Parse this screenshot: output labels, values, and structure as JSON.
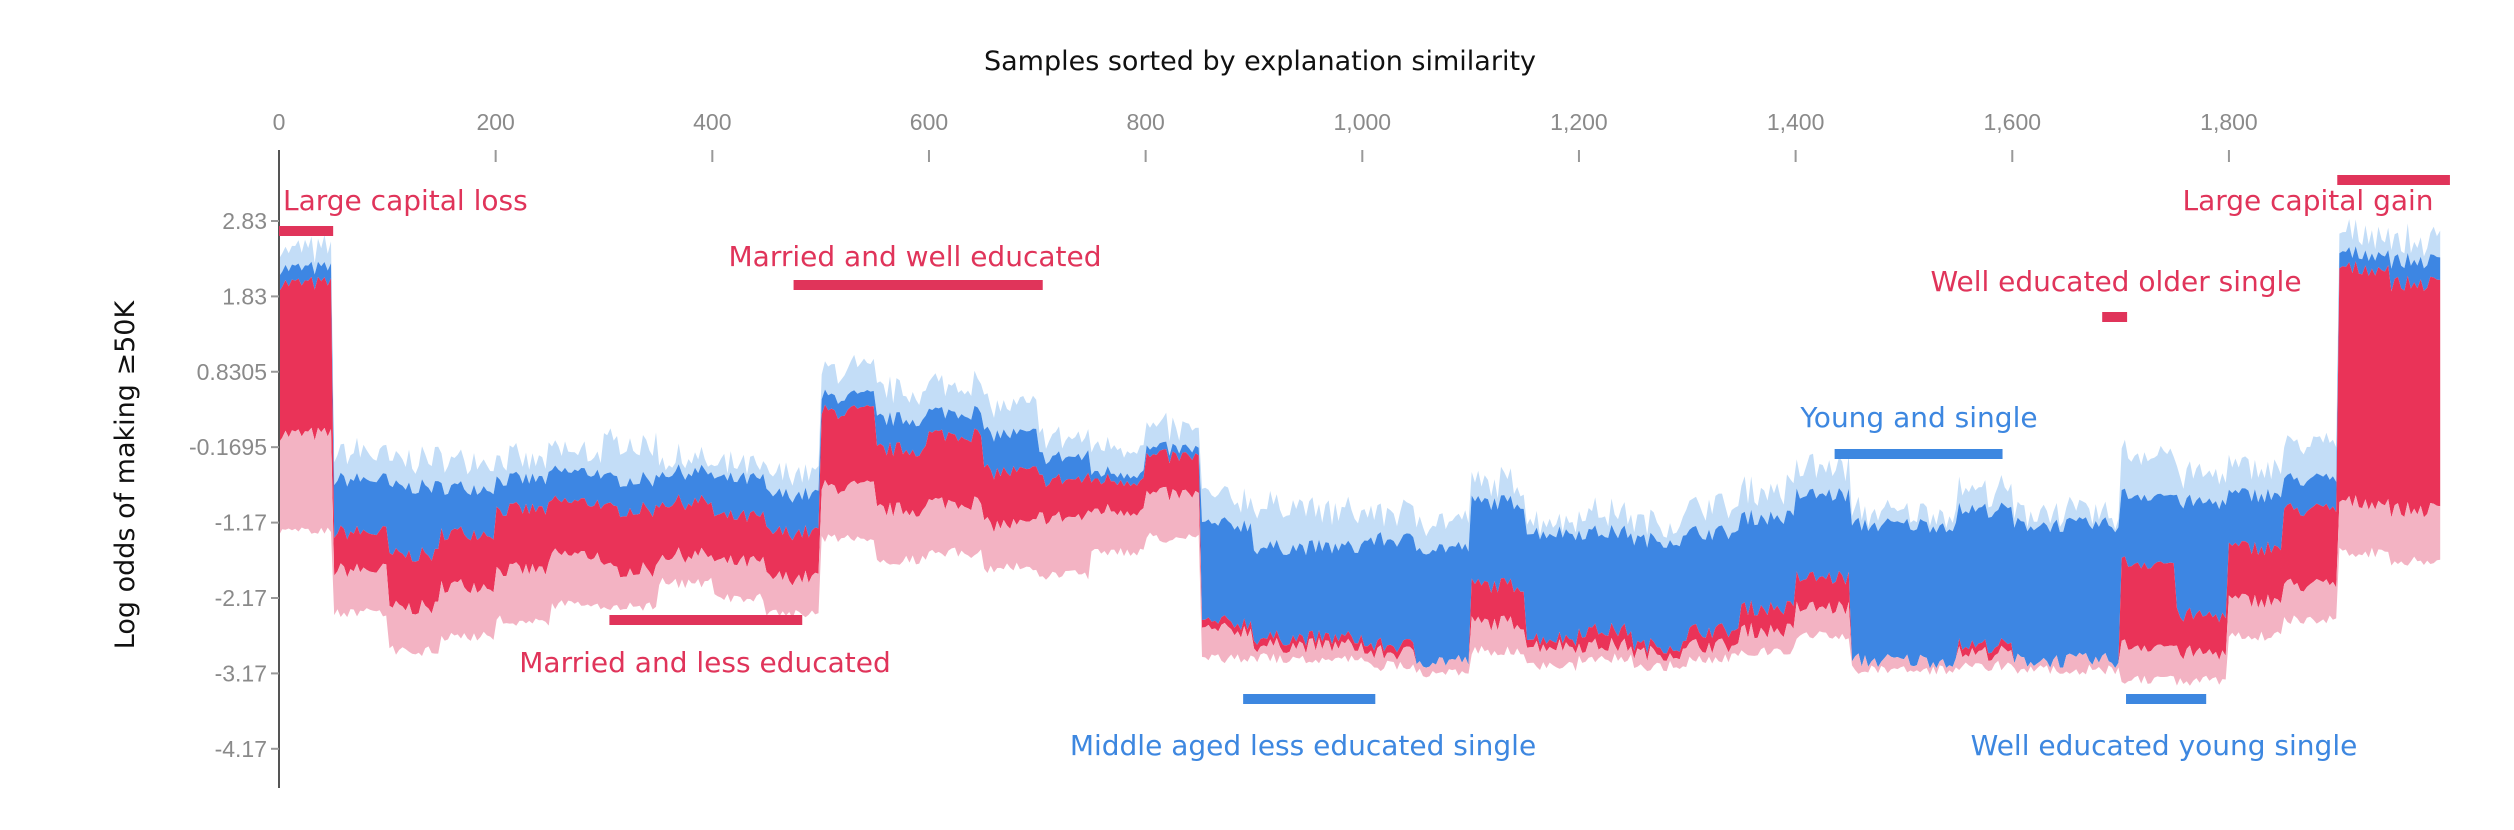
{
  "chart_data": {
    "type": "area",
    "title": "Samples sorted by explanation similarity",
    "xlabel": "",
    "ylabel": "Log odds of making ≥50K",
    "xlim": [
      0,
      1995
    ],
    "ylim": [
      -4.4,
      3.3
    ],
    "x_ticks": [
      {
        "value": 0,
        "label": "0"
      },
      {
        "value": 200,
        "label": "200"
      },
      {
        "value": 400,
        "label": "400"
      },
      {
        "value": 600,
        "label": "600"
      },
      {
        "value": 800,
        "label": "800"
      },
      {
        "value": 1000,
        "label": "1,000"
      },
      {
        "value": 1200,
        "label": "1,200"
      },
      {
        "value": 1400,
        "label": "1,400"
      },
      {
        "value": 1600,
        "label": "1,600"
      },
      {
        "value": 1800,
        "label": "1,800"
      }
    ],
    "y_ticks": [
      {
        "value": 2.83,
        "label": "2.83"
      },
      {
        "value": 1.83,
        "label": "1.83"
      },
      {
        "value": 0.8305,
        "label": "0.8305"
      },
      {
        "value": -0.1695,
        "label": "-0.1695"
      },
      {
        "value": -1.17,
        "label": "-1.17"
      },
      {
        "value": -2.17,
        "label": "-2.17"
      },
      {
        "value": -3.17,
        "label": "-3.17"
      },
      {
        "value": -4.17,
        "label": "-4.17"
      }
    ],
    "grid": false,
    "colors": {
      "positive": "#ea3358",
      "positive_light": "#f3b3c3",
      "negative": "#3d86e3",
      "negative_light": "#c3ddf7",
      "axis": "#555555"
    },
    "bin_size": 50,
    "x_start": [
      0,
      50,
      100,
      150,
      200,
      250,
      300,
      350,
      400,
      450,
      500,
      550,
      600,
      650,
      700,
      750,
      800,
      850,
      900,
      950,
      1000,
      1050,
      1100,
      1150,
      1200,
      1250,
      1300,
      1350,
      1400,
      1450,
      1500,
      1550,
      1600,
      1650,
      1700,
      1750,
      1800,
      1850,
      1900,
      1950
    ],
    "series": [
      {
        "layer": "top of negative (light)",
        "values": [
          2.4,
          -0.3,
          -0.4,
          -0.4,
          -0.4,
          -0.3,
          -0.2,
          -0.4,
          -0.5,
          -0.6,
          0.8,
          0.5,
          0.6,
          0.3,
          -0.1,
          -0.2,
          0.0,
          -0.9,
          -1.0,
          -1.1,
          -1.1,
          -1.2,
          -0.7,
          -1.2,
          -1.1,
          -1.2,
          -1.0,
          -0.8,
          -0.5,
          -1.1,
          -1.1,
          -0.8,
          -1.1,
          -1.1,
          -0.3,
          -0.6,
          -0.5,
          -0.2,
          2.6,
          2.5
        ]
      },
      {
        "layer": "top of negative (dark)",
        "values": [
          2.2,
          -0.6,
          -0.7,
          -0.7,
          -0.6,
          -0.5,
          -0.6,
          -0.5,
          -0.6,
          -0.8,
          0.5,
          0.2,
          0.3,
          0.0,
          -0.3,
          -0.5,
          -0.2,
          -1.2,
          -1.5,
          -1.5,
          -1.4,
          -1.5,
          -0.9,
          -1.3,
          -1.3,
          -1.4,
          -1.3,
          -1.1,
          -0.8,
          -1.2,
          -1.2,
          -1.0,
          -1.2,
          -1.2,
          -0.8,
          -0.9,
          -0.8,
          -0.6,
          2.4,
          2.3
        ]
      },
      {
        "layer": "model output",
        "values": [
          2.0,
          -1.3,
          -1.6,
          -1.3,
          -1.0,
          -0.9,
          -1.0,
          -0.9,
          -1.1,
          -1.3,
          0.3,
          -0.2,
          0.0,
          -0.5,
          -0.6,
          -0.6,
          -0.3,
          -2.5,
          -2.7,
          -2.7,
          -2.8,
          -3.0,
          -2.0,
          -2.7,
          -2.6,
          -2.8,
          -2.6,
          -2.3,
          -1.9,
          -3.0,
          -3.0,
          -2.8,
          -3.0,
          -3.0,
          -1.7,
          -2.4,
          -1.5,
          -1.0,
          2.2,
          2.0
        ]
      },
      {
        "layer": "bottom of positive (dark)",
        "values": [
          0.0,
          -1.8,
          -2.3,
          -2.0,
          -1.8,
          -1.6,
          -1.8,
          -1.6,
          -1.7,
          -1.9,
          -0.7,
          -1.0,
          -0.9,
          -1.2,
          -1.1,
          -1.0,
          -0.8,
          -2.6,
          -2.8,
          -2.8,
          -2.9,
          -3.0,
          -2.5,
          -2.8,
          -2.8,
          -2.9,
          -2.8,
          -2.6,
          -2.3,
          -3.0,
          -3.0,
          -2.9,
          -3.0,
          -3.0,
          -2.8,
          -2.9,
          -2.2,
          -2.0,
          -0.9,
          -1.0
        ]
      },
      {
        "layer": "bottom of positive (light)",
        "values": [
          -1.2,
          -2.3,
          -2.8,
          -2.6,
          -2.4,
          -2.2,
          -2.2,
          -1.9,
          -2.1,
          -2.3,
          -1.3,
          -1.6,
          -1.5,
          -1.7,
          -1.8,
          -1.5,
          -1.3,
          -2.9,
          -2.9,
          -2.9,
          -3.0,
          -3.1,
          -2.8,
          -3.0,
          -2.9,
          -3.0,
          -2.9,
          -2.8,
          -2.6,
          -3.05,
          -3.05,
          -3.0,
          -3.05,
          -3.05,
          -3.2,
          -3.2,
          -2.6,
          -2.4,
          -1.5,
          -1.6
        ]
      }
    ],
    "annotations": [
      {
        "label": "Large capital loss",
        "color": "#e0345a",
        "range": [
          0,
          50
        ]
      },
      {
        "label": "Married and well educated",
        "color": "#e0345a",
        "range": [
          475,
          705
        ]
      },
      {
        "label": "Married and less educated",
        "color": "#e0345a",
        "range": [
          305,
          483
        ]
      },
      {
        "label": "Middle aged less educated single",
        "color": "#3d87e0",
        "range": [
          890,
          1012
        ]
      },
      {
        "label": "Young and single",
        "color": "#3d87e0",
        "range": [
          1436,
          1591
        ]
      },
      {
        "label": "Well educated older single",
        "color": "#e0345a",
        "range": [
          1683,
          1706
        ]
      },
      {
        "label": "Well educated young single",
        "color": "#3d87e0",
        "range": [
          1705,
          1779
        ]
      },
      {
        "label": "Large capital gain",
        "color": "#e0345a",
        "range": [
          1900,
          2004
        ]
      }
    ]
  }
}
